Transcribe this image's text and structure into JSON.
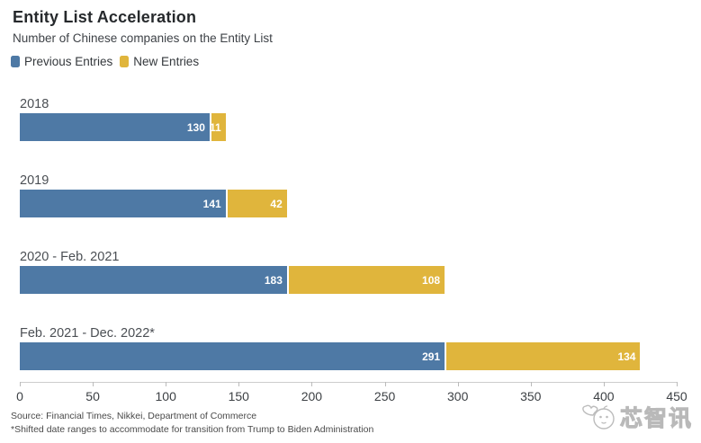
{
  "header": {
    "title": "Entity List Acceleration",
    "subtitle": "Number of Chinese companies on the Entity List"
  },
  "chart_data": {
    "type": "bar",
    "orientation": "horizontal",
    "stacked": true,
    "title": "Entity List Acceleration",
    "subtitle": "Number of Chinese companies on the Entity List",
    "categories": [
      "2018",
      "2019",
      "2020 - Feb. 2021",
      "Feb. 2021 - Dec. 2022*"
    ],
    "series": [
      {
        "name": "Previous Entries",
        "color": "#4e79a5",
        "values": [
          130,
          141,
          183,
          291
        ]
      },
      {
        "name": "New Entries",
        "color": "#e0b53c",
        "values": [
          11,
          42,
          108,
          134
        ]
      }
    ],
    "xlim": [
      0,
      450
    ],
    "x_ticks": [
      0,
      50,
      100,
      150,
      200,
      250,
      300,
      350,
      400,
      450
    ],
    "xlabel": "",
    "ylabel": "",
    "grid": false,
    "legend_position": "top-left",
    "value_labels": "inside-end-white"
  },
  "footer": {
    "source": "Source: Financial Times, Nikkei, Department of Commerce",
    "footnote": "*Shifted date ranges to accommodate for transition from Trump to Biden Administration"
  },
  "watermark": {
    "text": "芯智讯",
    "icon": "chip-mascot-icon"
  },
  "colors": {
    "previous_entries": "#4e79a5",
    "new_entries": "#e0b53c",
    "axis_line": "#cccccc",
    "title_text": "#26292c",
    "body_text": "#4b4f54",
    "value_label_text": "#ffffff",
    "watermark": "#b9b9b9"
  }
}
